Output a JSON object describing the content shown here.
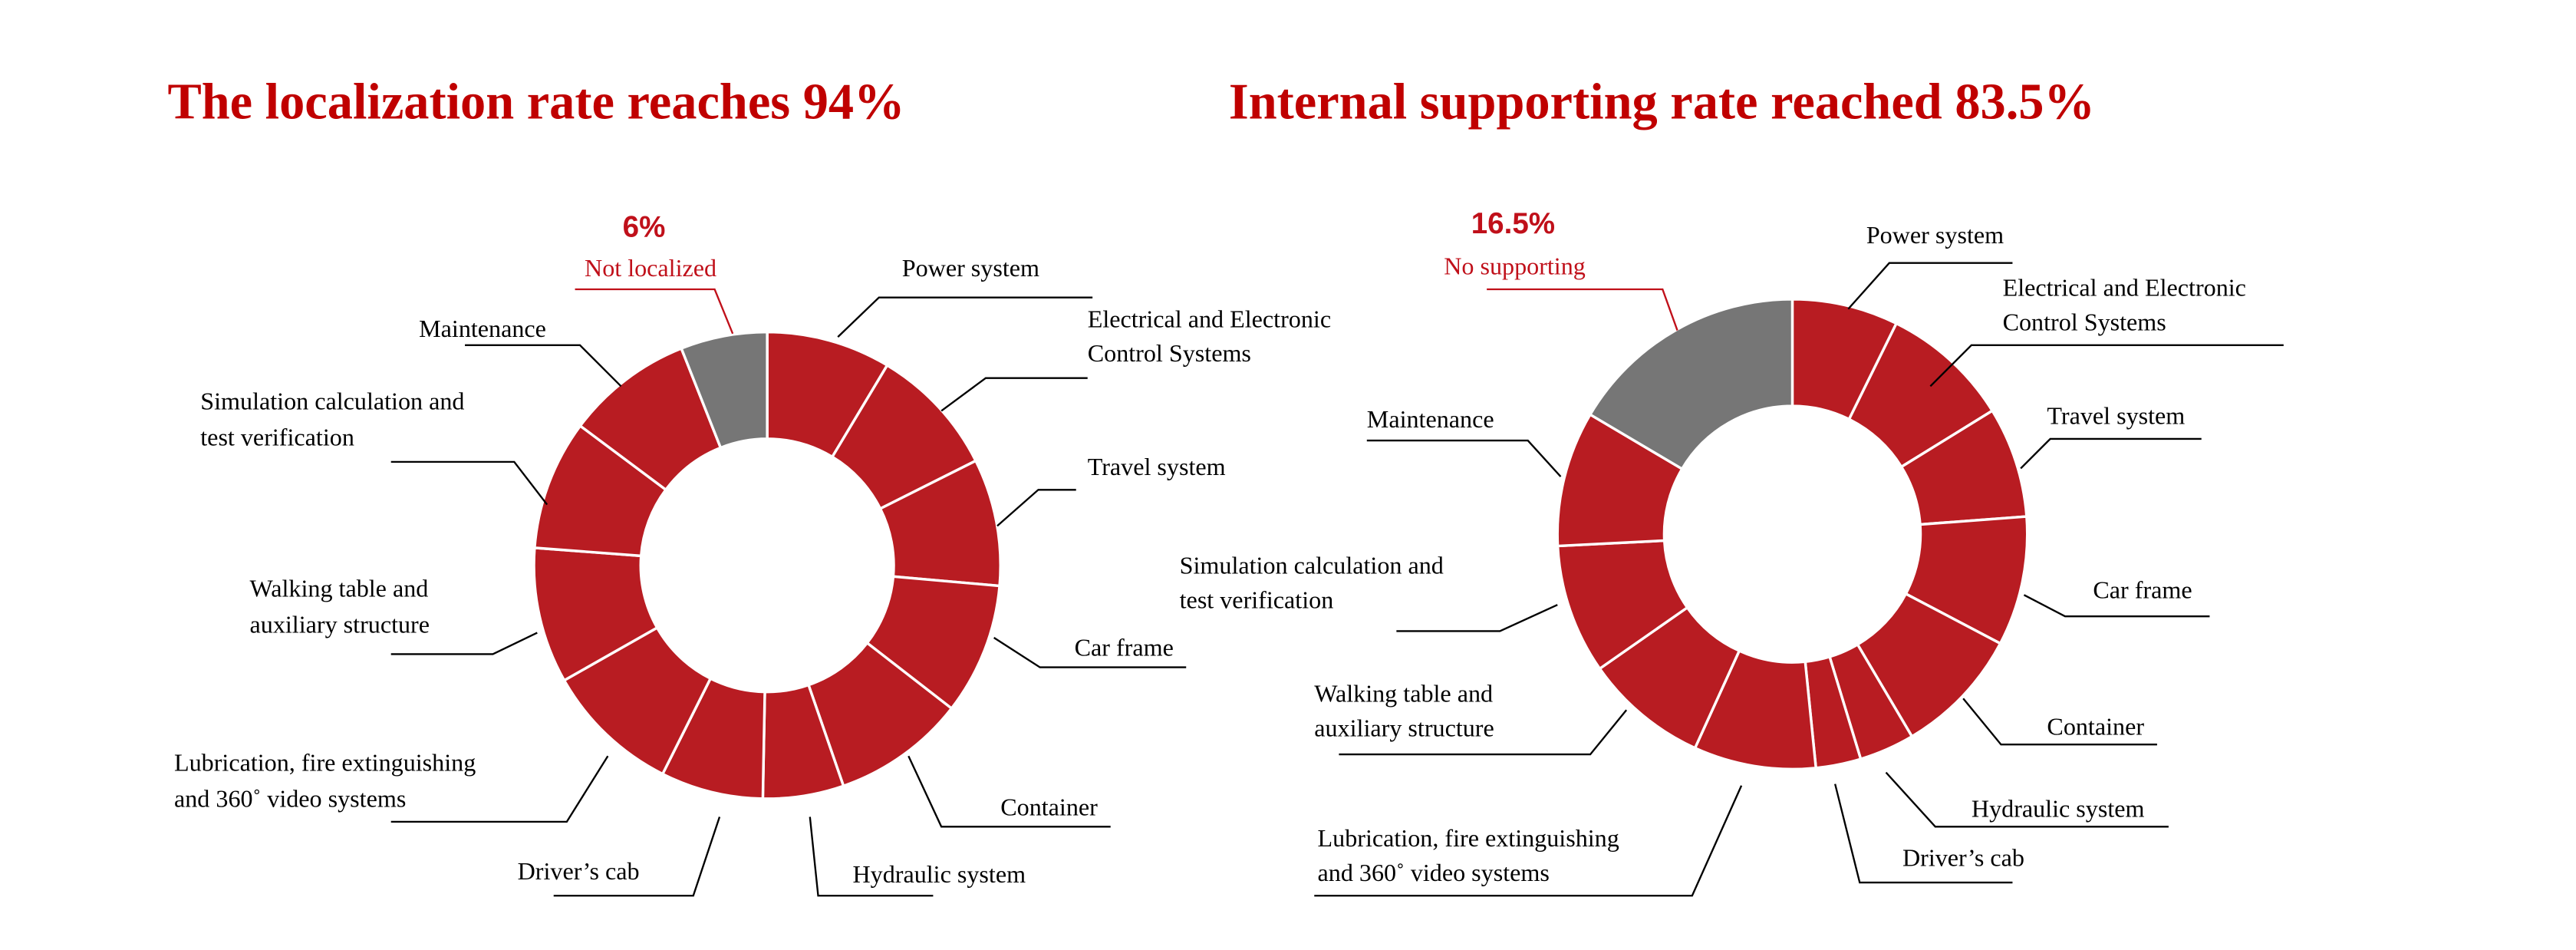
{
  "colors": {
    "segment": "#b81c22",
    "remainder": "#767676",
    "title": "#c00000",
    "accent_text": "#c0101a"
  },
  "chart_data": [
    {
      "type": "pie",
      "variant": "donut",
      "title": "The localization rate reaches 94%",
      "categories": [
        "Power system",
        "Electrical and Electronic Control Systems",
        "Travel system",
        "Car frame",
        "Container",
        "Hydraulic system",
        "Driver’s cab",
        "Lubrication, fire extinguishing and 360˚ video systems",
        "Walking table and auxiliary structure",
        "Simulation calculation and test verification",
        "Maintenance",
        "Not localized"
      ],
      "label_lines": [
        [
          "Power system"
        ],
        [
          "Electrical and Electronic",
          "Control Systems"
        ],
        [
          "Travel system"
        ],
        [
          "Car frame"
        ],
        [
          "Container"
        ],
        [
          "Hydraulic system"
        ],
        [
          "Driver’s cab"
        ],
        [
          "Lubrication, fire extinguishing",
          "and 360˚ video systems"
        ],
        [
          "Walking table and",
          "auxiliary structure"
        ],
        [
          "Simulation calculation and",
          "test verification"
        ],
        [
          "Maintenance"
        ]
      ],
      "values": [
        8.6,
        9.0,
        8.8,
        9.1,
        9.2,
        5.6,
        7.1,
        9.4,
        9.4,
        9.0,
        8.8,
        6.0
      ],
      "highlight": {
        "value_label": "6%",
        "label": "Not localized"
      }
    },
    {
      "type": "pie",
      "variant": "donut",
      "title": "Internal supporting rate reached 83.5%",
      "categories": [
        "Power system",
        "Electrical and Electronic Control Systems",
        "Travel system",
        "Car frame",
        "Container",
        "Hydraulic system",
        "Driver’s cab",
        "Lubrication, fire extinguishing and 360˚ video systems",
        "Walking table and auxiliary structure",
        "Simulation calculation and test verification",
        "Maintenance",
        "No supporting"
      ],
      "label_lines": [
        [
          "Power system"
        ],
        [
          "Electrical and Electronic",
          "Control Systems"
        ],
        [
          "Travel system"
        ],
        [
          "Car frame"
        ],
        [
          "Container"
        ],
        [
          "Hydraulic system"
        ],
        [
          "Driver’s cab"
        ],
        [
          "Lubrication, fire extinguishing",
          "and 360˚ video systems"
        ],
        [
          "Walking table and",
          "auxiliary structure"
        ],
        [
          "Simulation calculation and",
          "test verification"
        ],
        [
          "Maintenance"
        ]
      ],
      "values": [
        7.3,
        8.9,
        7.6,
        8.9,
        8.8,
        3.8,
        3.1,
        8.4,
        8.5,
        8.9,
        9.3,
        16.5
      ],
      "highlight": {
        "value_label": "16.5%",
        "label": "No supporting"
      }
    }
  ]
}
